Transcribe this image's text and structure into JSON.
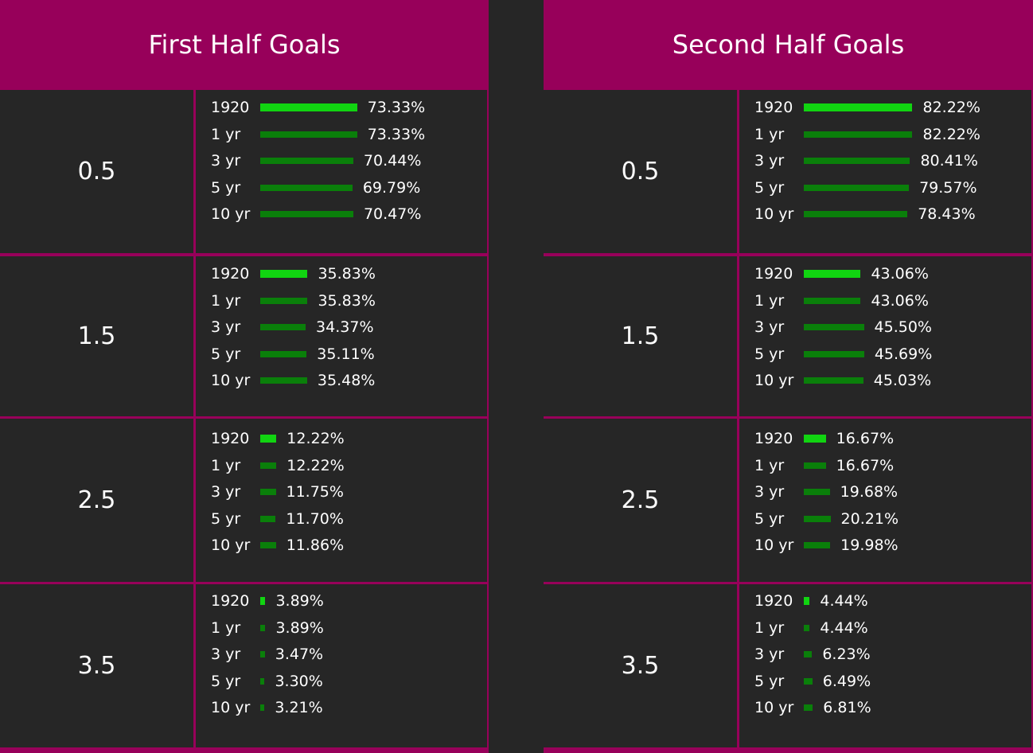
{
  "colors": {
    "panel_border": "#97005a",
    "cell_bg": "#262626",
    "bar_current": "#11d411",
    "bar_history": "#0a7f0a"
  },
  "chart_data": [
    {
      "type": "bar",
      "title": "First Half Goals",
      "series_labels": [
        "1920",
        "1 yr",
        "3 yr",
        "5 yr",
        "10 yr"
      ],
      "rows": [
        {
          "line": "0.5",
          "values": [
            73.33,
            73.33,
            70.44,
            69.79,
            70.47
          ],
          "labels": [
            "73.33%",
            "73.33%",
            "70.44%",
            "69.79%",
            "70.47%"
          ]
        },
        {
          "line": "1.5",
          "values": [
            35.83,
            35.83,
            34.37,
            35.11,
            35.48
          ],
          "labels": [
            "35.83%",
            "35.83%",
            "34.37%",
            "35.11%",
            "35.48%"
          ]
        },
        {
          "line": "2.5",
          "values": [
            12.22,
            12.22,
            11.75,
            11.7,
            11.86
          ],
          "labels": [
            "12.22%",
            "12.22%",
            "11.75%",
            "11.70%",
            "11.86%"
          ]
        },
        {
          "line": "3.5",
          "values": [
            3.89,
            3.89,
            3.47,
            3.3,
            3.21
          ],
          "labels": [
            "3.89%",
            "3.89%",
            "3.47%",
            "3.30%",
            "3.21%"
          ]
        }
      ]
    },
    {
      "type": "bar",
      "title": "Second Half Goals",
      "series_labels": [
        "1920",
        "1 yr",
        "3 yr",
        "5 yr",
        "10 yr"
      ],
      "rows": [
        {
          "line": "0.5",
          "values": [
            82.22,
            82.22,
            80.41,
            79.57,
            78.43
          ],
          "labels": [
            "82.22%",
            "82.22%",
            "80.41%",
            "79.57%",
            "78.43%"
          ]
        },
        {
          "line": "1.5",
          "values": [
            43.06,
            43.06,
            45.5,
            45.69,
            45.03
          ],
          "labels": [
            "43.06%",
            "43.06%",
            "45.50%",
            "45.69%",
            "45.03%"
          ]
        },
        {
          "line": "2.5",
          "values": [
            16.67,
            16.67,
            19.68,
            20.21,
            19.98
          ],
          "labels": [
            "16.67%",
            "16.67%",
            "19.68%",
            "20.21%",
            "19.98%"
          ]
        },
        {
          "line": "3.5",
          "values": [
            4.44,
            4.44,
            6.23,
            6.49,
            6.81
          ],
          "labels": [
            "4.44%",
            "4.44%",
            "6.23%",
            "6.49%",
            "6.81%"
          ]
        }
      ]
    }
  ]
}
